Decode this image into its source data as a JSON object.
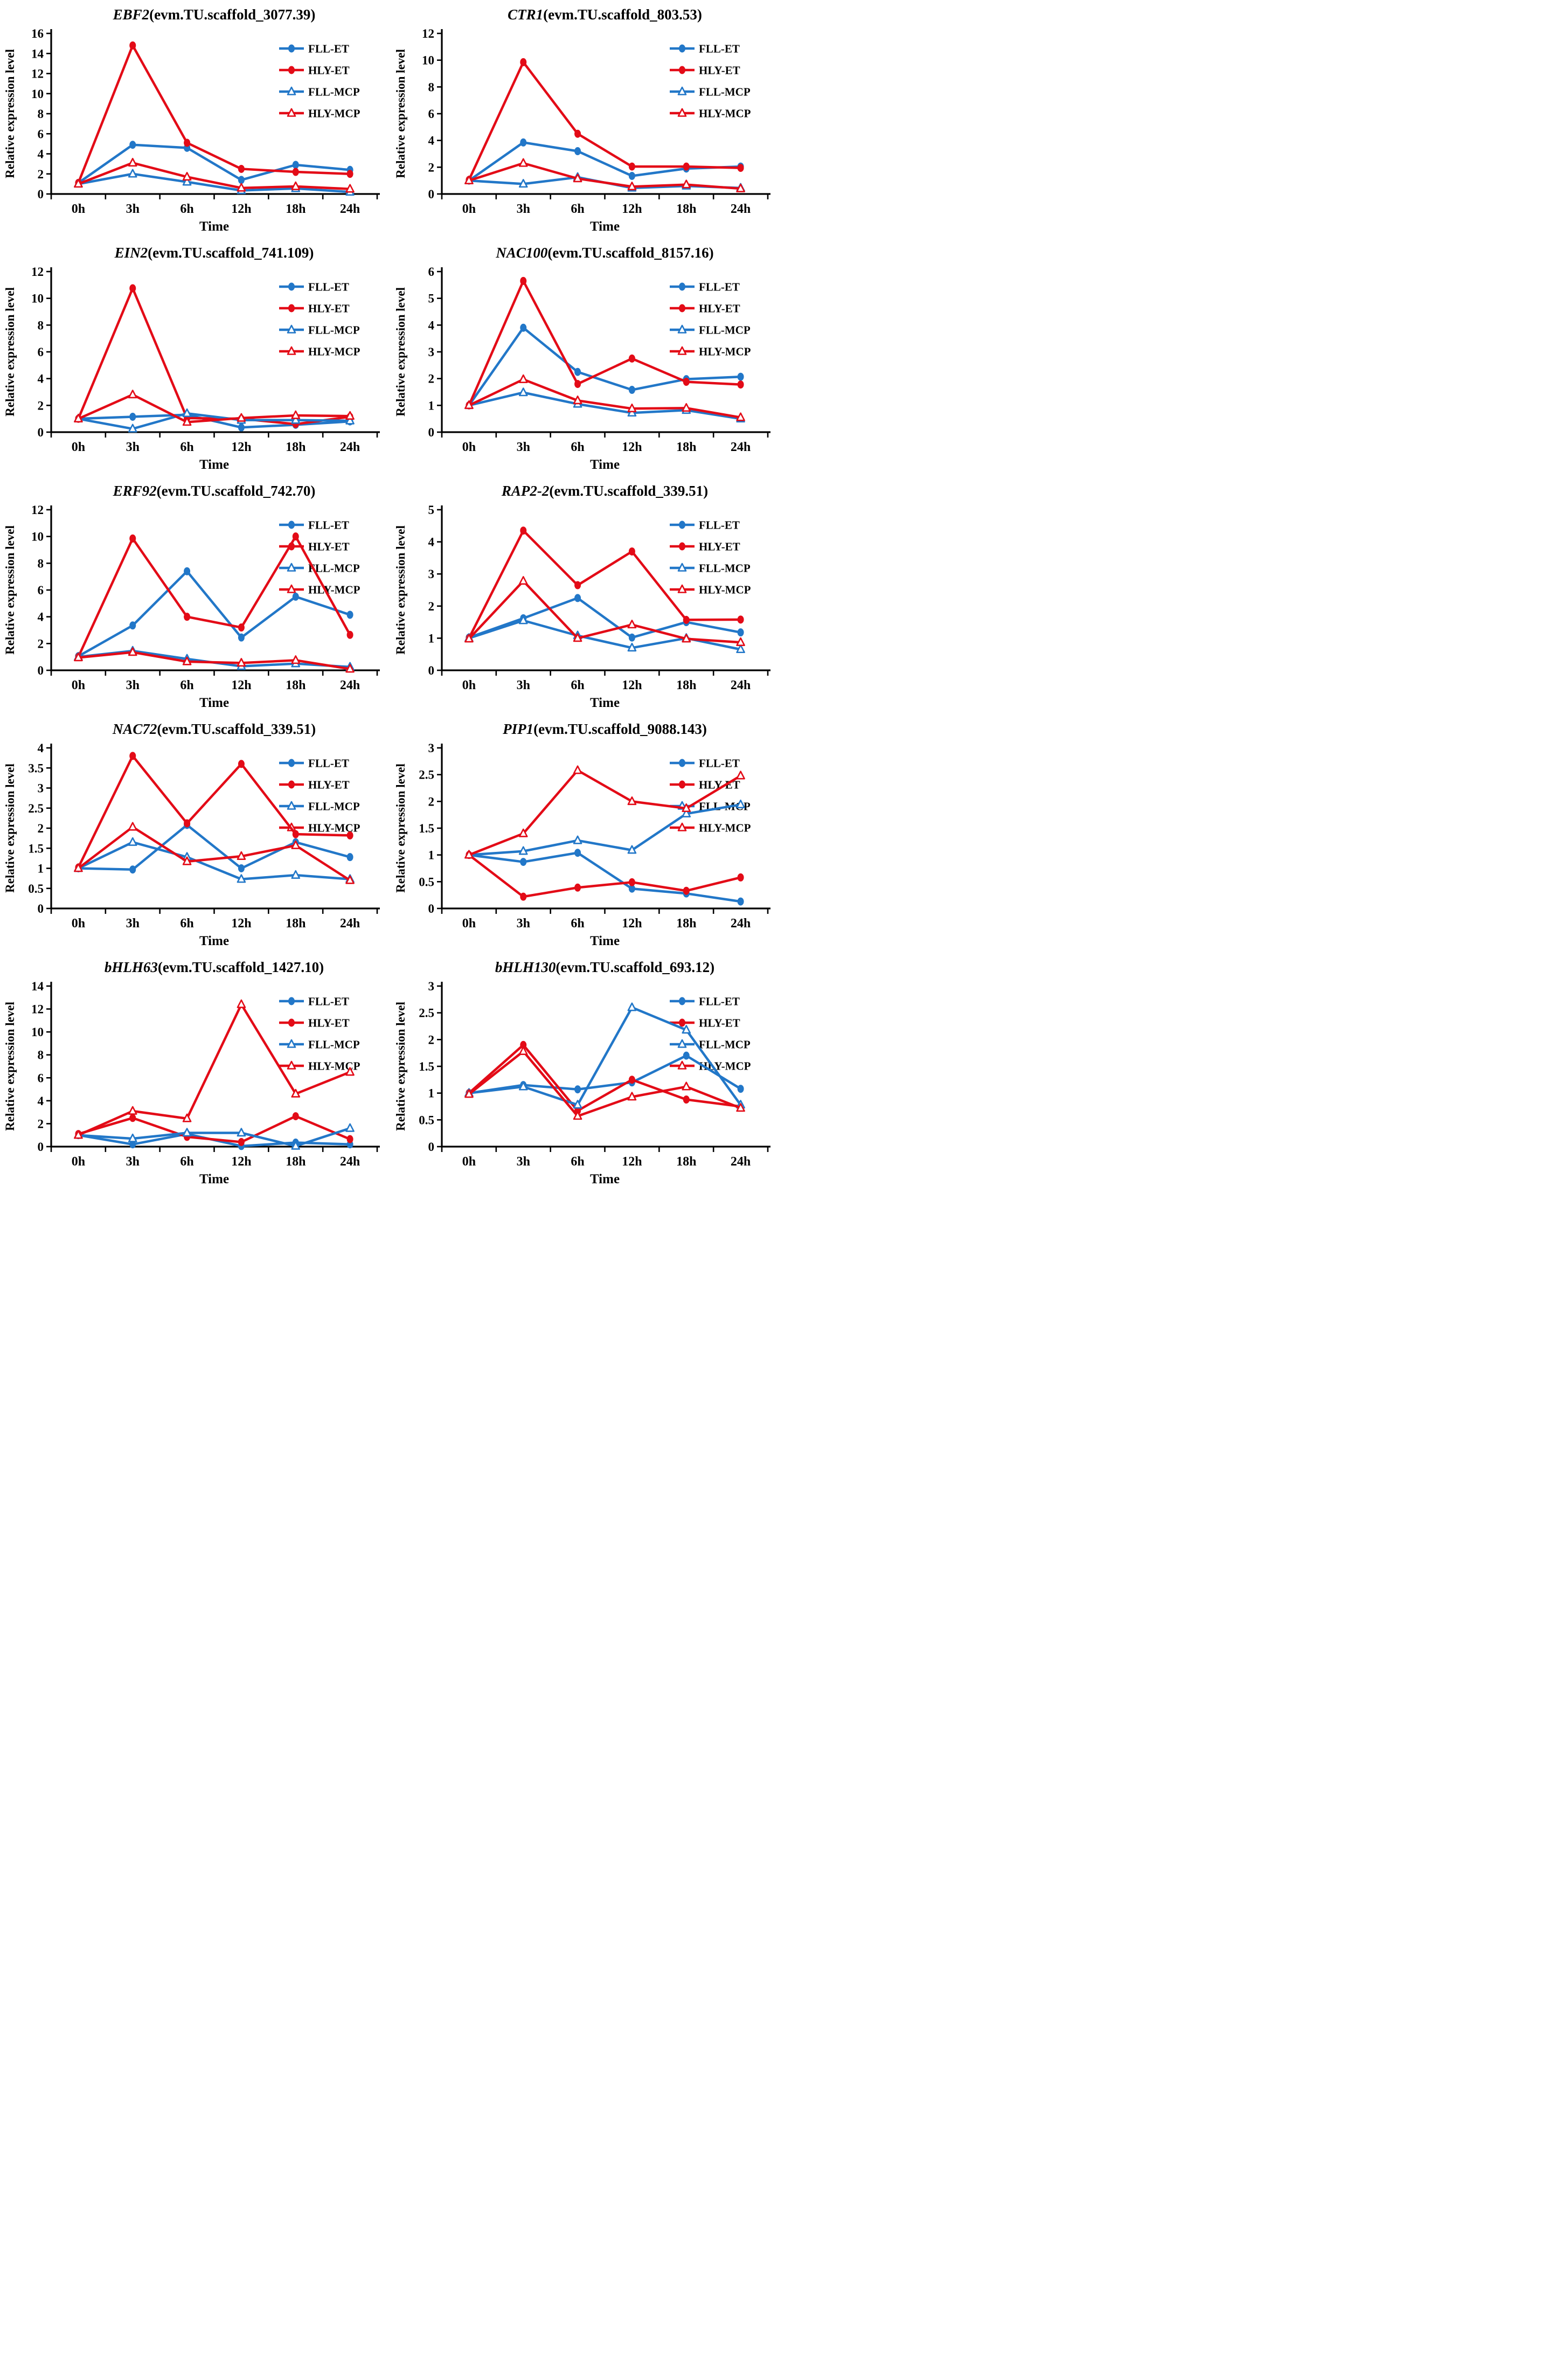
{
  "figure": {
    "xlabel": "Time",
    "ylabel": "Relative expression level",
    "categories": [
      "0h",
      "3h",
      "6h",
      "12h",
      "18h",
      "24h"
    ],
    "colors": {
      "blue": "#2277C8",
      "red": "#E30B17",
      "axis": "#000000",
      "background": "#ffffff"
    },
    "legend": [
      {
        "label": "FLL-ET",
        "color": "blue",
        "marker": "circle-filled"
      },
      {
        "label": "HLY-ET",
        "color": "red",
        "marker": "circle-filled"
      },
      {
        "label": "FLL-MCP",
        "color": "blue",
        "marker": "triangle-open"
      },
      {
        "label": "HLY-MCP",
        "color": "red",
        "marker": "triangle-open"
      }
    ]
  },
  "chart_data": [
    {
      "type": "line",
      "title_gene": "EBF2",
      "title_rest": "(evm.TU.scaffold_3077.39)",
      "ylim": [
        0,
        16
      ],
      "ystep": 2,
      "series": [
        {
          "name": "FLL-ET",
          "values": [
            1.1,
            4.9,
            4.6,
            1.4,
            2.9,
            2.4
          ]
        },
        {
          "name": "HLY-ET",
          "values": [
            1.1,
            14.8,
            5.1,
            2.5,
            2.2,
            2.0
          ]
        },
        {
          "name": "FLL-MCP",
          "values": [
            1.0,
            2.0,
            1.2,
            0.35,
            0.55,
            0.2
          ]
        },
        {
          "name": "HLY-MCP",
          "values": [
            1.0,
            3.1,
            1.7,
            0.6,
            0.75,
            0.5
          ]
        }
      ]
    },
    {
      "type": "line",
      "title_gene": "CTR1",
      "title_rest": "(evm.TU.scaffold_803.53)",
      "ylim": [
        0,
        12
      ],
      "ystep": 2,
      "series": [
        {
          "name": "FLL-ET",
          "values": [
            1.0,
            3.85,
            3.2,
            1.35,
            1.9,
            2.05
          ]
        },
        {
          "name": "HLY-ET",
          "values": [
            1.05,
            9.85,
            4.5,
            2.05,
            2.05,
            1.95
          ]
        },
        {
          "name": "FLL-MCP",
          "values": [
            1.0,
            0.75,
            1.25,
            0.45,
            0.6,
            0.45
          ]
        },
        {
          "name": "HLY-MCP",
          "values": [
            1.0,
            2.3,
            1.15,
            0.55,
            0.7,
            0.4
          ]
        }
      ]
    },
    {
      "type": "line",
      "title_gene": "EIN2",
      "title_rest": "(evm.TU.scaffold_741.109)",
      "ylim": [
        0,
        12
      ],
      "ystep": 2,
      "series": [
        {
          "name": "FLL-ET",
          "values": [
            1.0,
            1.15,
            1.3,
            0.35,
            0.55,
            0.8
          ]
        },
        {
          "name": "HLY-ET",
          "values": [
            1.0,
            10.75,
            1.05,
            1.0,
            0.6,
            1.15
          ]
        },
        {
          "name": "FLL-MCP",
          "values": [
            1.0,
            0.25,
            1.4,
            0.9,
            0.9,
            0.85
          ]
        },
        {
          "name": "HLY-MCP",
          "values": [
            1.0,
            2.8,
            0.75,
            1.05,
            1.25,
            1.2
          ]
        }
      ]
    },
    {
      "type": "line",
      "title_gene": "NAC100",
      "title_rest": "(evm.TU.scaffold_8157.16)",
      "ylim": [
        0,
        6
      ],
      "ystep": 1,
      "series": [
        {
          "name": "FLL-ET",
          "values": [
            1.0,
            3.9,
            2.25,
            1.58,
            1.98,
            2.07
          ]
        },
        {
          "name": "HLY-ET",
          "values": [
            1.0,
            5.65,
            1.8,
            2.75,
            1.88,
            1.78
          ]
        },
        {
          "name": "FLL-MCP",
          "values": [
            1.0,
            1.48,
            1.05,
            0.72,
            0.82,
            0.5
          ]
        },
        {
          "name": "HLY-MCP",
          "values": [
            1.0,
            1.97,
            1.18,
            0.88,
            0.9,
            0.55
          ]
        }
      ]
    },
    {
      "type": "line",
      "title_gene": "ERF92",
      "title_rest": "(evm.TU.scaffold_742.70)",
      "ylim": [
        0,
        12
      ],
      "ystep": 2,
      "series": [
        {
          "name": "FLL-ET",
          "values": [
            1.05,
            3.35,
            7.4,
            2.45,
            5.5,
            4.15
          ]
        },
        {
          "name": "HLY-ET",
          "values": [
            1.0,
            9.85,
            4.0,
            3.2,
            10.0,
            2.65
          ]
        },
        {
          "name": "FLL-MCP",
          "values": [
            1.0,
            1.45,
            0.85,
            0.3,
            0.5,
            0.25
          ]
        },
        {
          "name": "HLY-MCP",
          "values": [
            0.95,
            1.35,
            0.65,
            0.55,
            0.75,
            0.1
          ]
        }
      ]
    },
    {
      "type": "line",
      "title_gene": "RAP2-2",
      "title_rest": "(evm.TU.scaffold_339.51)",
      "ylim": [
        0,
        5
      ],
      "ystep": 1,
      "series": [
        {
          "name": "FLL-ET",
          "values": [
            1.02,
            1.62,
            2.25,
            1.02,
            1.5,
            1.18
          ]
        },
        {
          "name": "HLY-ET",
          "values": [
            1.0,
            4.35,
            2.65,
            3.7,
            1.57,
            1.58
          ]
        },
        {
          "name": "FLL-MCP",
          "values": [
            1.0,
            1.55,
            1.08,
            0.7,
            1.0,
            0.65
          ]
        },
        {
          "name": "HLY-MCP",
          "values": [
            0.98,
            2.78,
            1.0,
            1.42,
            0.98,
            0.87
          ]
        }
      ]
    },
    {
      "type": "line",
      "title_gene": "NAC72",
      "title_rest": "(evm.TU.scaffold_339.51)",
      "ylim": [
        0,
        4
      ],
      "ystep": 0.5,
      "series": [
        {
          "name": "FLL-ET",
          "values": [
            1.0,
            0.97,
            2.08,
            1.0,
            1.65,
            1.28
          ]
        },
        {
          "name": "HLY-ET",
          "values": [
            1.02,
            3.8,
            2.12,
            3.6,
            1.85,
            1.82
          ]
        },
        {
          "name": "FLL-MCP",
          "values": [
            1.0,
            1.65,
            1.28,
            0.73,
            0.83,
            0.73
          ]
        },
        {
          "name": "HLY-MCP",
          "values": [
            1.0,
            2.03,
            1.17,
            1.3,
            1.57,
            0.7
          ]
        }
      ]
    },
    {
      "type": "line",
      "title_gene": "PIP1",
      "title_rest": "(evm.TU.scaffold_9088.143)",
      "ylim": [
        0,
        3
      ],
      "ystep": 0.5,
      "series": [
        {
          "name": "FLL-ET",
          "values": [
            1.0,
            0.87,
            1.04,
            0.37,
            0.28,
            0.13
          ]
        },
        {
          "name": "HLY-ET",
          "values": [
            1.0,
            0.22,
            0.39,
            0.49,
            0.33,
            0.58
          ]
        },
        {
          "name": "FLL-MCP",
          "values": [
            1.0,
            1.07,
            1.27,
            1.09,
            1.77,
            1.94
          ]
        },
        {
          "name": "HLY-MCP",
          "values": [
            1.0,
            1.4,
            2.58,
            2.0,
            1.87,
            2.48
          ]
        }
      ]
    },
    {
      "type": "line",
      "title_gene": "bHLH63",
      "title_rest": "(evm.TU.scaffold_1427.10)",
      "ylim": [
        0,
        14
      ],
      "ystep": 2,
      "series": [
        {
          "name": "FLL-ET",
          "values": [
            1.0,
            0.2,
            1.1,
            0.05,
            0.35,
            0.2
          ]
        },
        {
          "name": "HLY-ET",
          "values": [
            1.1,
            2.5,
            0.85,
            0.4,
            2.65,
            0.65
          ]
        },
        {
          "name": "FLL-MCP",
          "values": [
            1.0,
            0.7,
            1.2,
            1.2,
            0.05,
            1.6
          ]
        },
        {
          "name": "HLY-MCP",
          "values": [
            1.0,
            3.1,
            2.45,
            12.4,
            4.6,
            6.5
          ]
        }
      ]
    },
    {
      "type": "line",
      "title_gene": "bHLH130",
      "title_rest": "(evm.TU.scaffold_693.12)",
      "ylim": [
        0,
        3
      ],
      "ystep": 0.5,
      "series": [
        {
          "name": "FLL-ET",
          "values": [
            1.0,
            1.15,
            1.07,
            1.2,
            1.7,
            1.08
          ]
        },
        {
          "name": "HLY-ET",
          "values": [
            1.0,
            1.9,
            0.67,
            1.25,
            0.88,
            0.75
          ]
        },
        {
          "name": "FLL-MCP",
          "values": [
            1.0,
            1.12,
            0.78,
            2.6,
            2.18,
            0.78
          ]
        },
        {
          "name": "HLY-MCP",
          "values": [
            0.98,
            1.78,
            0.57,
            0.93,
            1.12,
            0.72
          ]
        }
      ]
    }
  ]
}
